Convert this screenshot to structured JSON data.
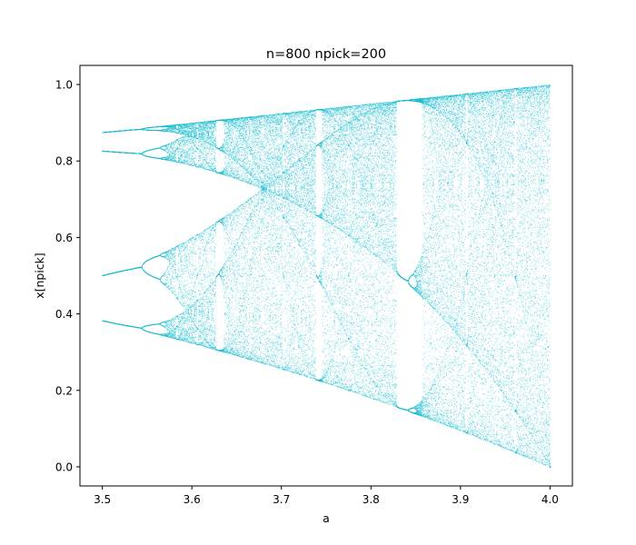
{
  "chart_data": {
    "type": "scatter",
    "title": "n=800  npick=200",
    "xlabel": "a",
    "ylabel": "x[npick]",
    "xlim": [
      3.475,
      4.025
    ],
    "ylim": [
      -0.05,
      1.05
    ],
    "xticks": [
      "3.5",
      "3.6",
      "3.7",
      "3.8",
      "3.9",
      "4.0"
    ],
    "yticks": [
      "0.0",
      "0.2",
      "0.4",
      "0.6",
      "0.8",
      "1.0"
    ],
    "marker_color": "#17becf",
    "grid": false,
    "series": [
      {
        "generator": "logistic map x -> a*x*(1-x), 200 iterates kept after 800-step transient",
        "a_start": 3.5,
        "a_end": 4.0,
        "x": [
          3.5,
          3.55,
          3.6,
          3.628,
          3.68,
          3.74,
          3.83,
          3.9,
          4.0
        ],
        "y_min": [
          0.383,
          0.355,
          0.32,
          0.29,
          0.26,
          0.22,
          0.155,
          0.09,
          0.0
        ],
        "y_max": [
          0.875,
          0.888,
          0.9,
          0.907,
          0.92,
          0.935,
          0.957,
          0.975,
          1.0
        ]
      }
    ]
  }
}
